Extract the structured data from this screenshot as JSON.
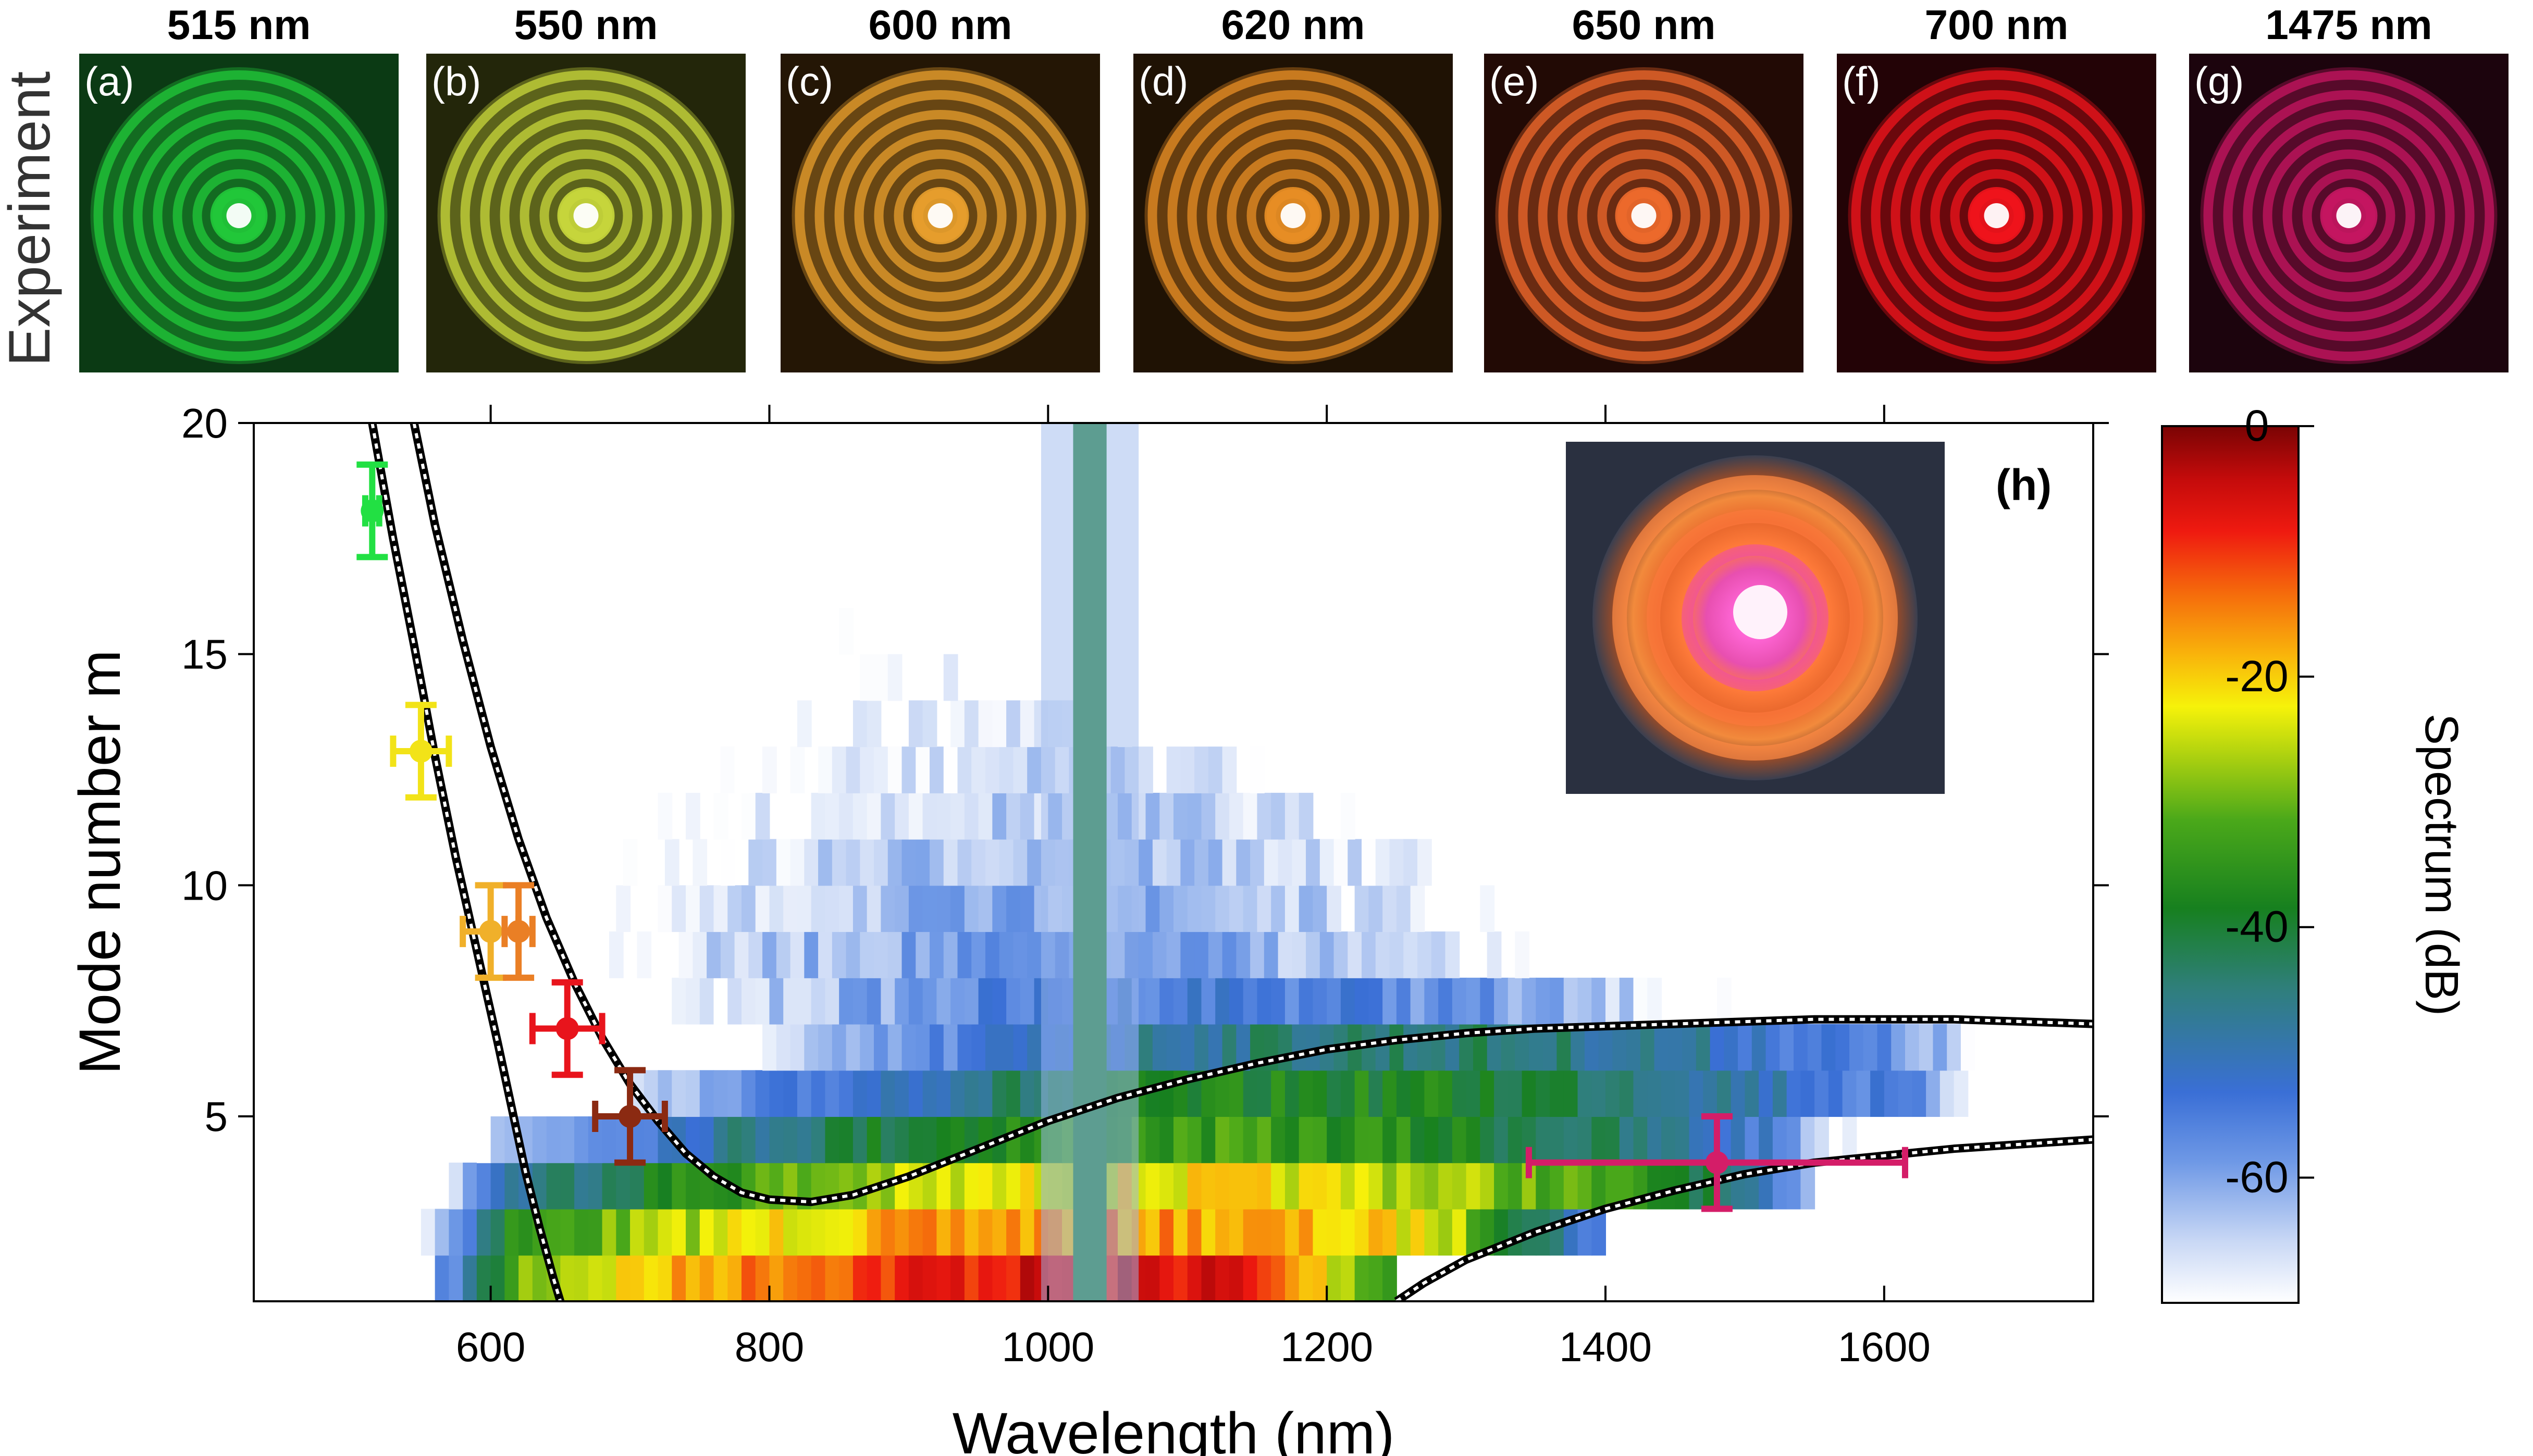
{
  "experiment_row": {
    "row_label": "Experiment",
    "panels": [
      {
        "tag": "(a)",
        "title": "515 nm",
        "wavelength": 515,
        "color": "#22c93a",
        "bg": "#0b3a14"
      },
      {
        "tag": "(b)",
        "title": "550 nm",
        "wavelength": 550,
        "color": "#c9d83c",
        "bg": "#23260a"
      },
      {
        "tag": "(c)",
        "title": "600 nm",
        "wavelength": 600,
        "color": "#e9a02e",
        "bg": "#241605"
      },
      {
        "tag": "(d)",
        "title": "620 nm",
        "wavelength": 620,
        "color": "#ea8f25",
        "bg": "#1f1204"
      },
      {
        "tag": "(e)",
        "title": "650 nm",
        "wavelength": 650,
        "color": "#f06a2c",
        "bg": "#220a05"
      },
      {
        "tag": "(f)",
        "title": "700 nm",
        "wavelength": 700,
        "color": "#f2141c",
        "bg": "#230306"
      },
      {
        "tag": "(g)",
        "title": "1475 nm",
        "wavelength": 1475,
        "color": "#c71662",
        "bg": "#1c040d"
      }
    ]
  },
  "chart_data": {
    "type": "heatmap",
    "panel_tag": "(h)",
    "xlabel": "Wavelength (nm)",
    "ylabel": "Mode number m",
    "xlim": [
      430,
      1750
    ],
    "ylim": [
      1,
      20
    ],
    "xticks": [
      600,
      800,
      1000,
      1200,
      1400,
      1600
    ],
    "yticks": [
      5,
      10,
      15,
      20
    ],
    "colorbar": {
      "label": "Spectrum (dB)",
      "range": [
        -70,
        0
      ],
      "ticks": [
        0,
        -20,
        -40,
        -60
      ],
      "colors": [
        "#ffffff",
        "#c9d8f5",
        "#6f99e6",
        "#3a6fd6",
        "#2f7f7a",
        "#17801f",
        "#4aa81a",
        "#a8cf10",
        "#f6f20a",
        "#f9b30b",
        "#f56a0c",
        "#ef1a10",
        "#c40b0b",
        "#7a0404"
      ]
    },
    "heatmap_bands": [
      {
        "m": 1.5,
        "x_start": 560,
        "x_end": 1250,
        "peak_db": -2,
        "peak_x": 1050
      },
      {
        "m": 2.5,
        "x_start": 550,
        "x_end": 1400,
        "peak_db": -12,
        "peak_x": 1020
      },
      {
        "m": 3.5,
        "x_start": 540,
        "x_end": 1580,
        "peak_db": -18,
        "peak_x": 1080
      },
      {
        "m": 4.5,
        "x_start": 540,
        "x_end": 1640,
        "peak_db": -30,
        "peak_x": 1100
      },
      {
        "m": 5.5,
        "x_start": 550,
        "x_end": 1750,
        "peak_db": -34,
        "peak_x": 1200
      },
      {
        "m": 6.5,
        "x_start": 555,
        "x_end": 1750,
        "peak_db": -40,
        "peak_x": 1250
      },
      {
        "m": 7.5,
        "x_start": 560,
        "x_end": 1750,
        "peak_db": -50,
        "peak_x": 1100
      },
      {
        "m": 8.5,
        "x_start": 565,
        "x_end": 1700,
        "peak_db": -55,
        "peak_x": 1000
      },
      {
        "m": 9.5,
        "x_start": 560,
        "x_end": 1650,
        "peak_db": -57,
        "peak_x": 1000
      },
      {
        "m": 10.5,
        "x_start": 555,
        "x_end": 1400,
        "peak_db": -58,
        "peak_x": 1000
      },
      {
        "m": 11.5,
        "x_start": 550,
        "x_end": 1350,
        "peak_db": -60,
        "peak_x": 1000
      },
      {
        "m": 12.5,
        "x_start": 545,
        "x_end": 1250,
        "peak_db": -62,
        "peak_x": 1000
      },
      {
        "m": 13.5,
        "x_start": 540,
        "x_end": 1150,
        "peak_db": -64,
        "peak_x": 1000
      },
      {
        "m": 14.5,
        "x_start": 535,
        "x_end": 1050,
        "peak_db": -66,
        "peak_x": 1000
      },
      {
        "m": 15.5,
        "x_start": 530,
        "x_end": 1000,
        "peak_db": -67,
        "peak_x": 1000
      },
      {
        "m": 16.5,
        "x_start": 525,
        "x_end": 980,
        "peak_db": -68,
        "peak_x": 1000
      },
      {
        "m": 17.5,
        "x_start": 520,
        "x_end": 960,
        "peak_db": -68,
        "peak_x": 1000
      },
      {
        "m": 18.5,
        "x_start": 515,
        "x_end": 950,
        "peak_db": -69,
        "peak_x": 1000
      }
    ],
    "pump_line": {
      "x": 1030,
      "m_from": 1,
      "m_to": 20,
      "db": -40
    },
    "curves": [
      {
        "name": "left branch",
        "x": [
          515,
          530,
          545,
          560,
          575,
          590,
          605,
          615,
          625,
          635,
          645,
          650
        ],
        "y": [
          20,
          17.5,
          15.2,
          12.8,
          10.6,
          8.6,
          6.6,
          5.2,
          3.8,
          2.6,
          1.5,
          1
        ]
      },
      {
        "name": "upper curve",
        "x": [
          545,
          560,
          580,
          600,
          620,
          640,
          660,
          680,
          700,
          720,
          740,
          760,
          780,
          800,
          830,
          860,
          900,
          950,
          1000,
          1050,
          1100,
          1150,
          1200,
          1250,
          1300,
          1350,
          1400,
          1450,
          1500,
          1550,
          1600,
          1650,
          1700,
          1750
        ],
        "y": [
          20,
          17.8,
          15.3,
          13.0,
          11.0,
          9.3,
          7.9,
          6.7,
          5.7,
          4.9,
          4.2,
          3.7,
          3.35,
          3.2,
          3.15,
          3.3,
          3.7,
          4.3,
          4.9,
          5.4,
          5.8,
          6.15,
          6.45,
          6.65,
          6.8,
          6.9,
          6.95,
          7.0,
          7.05,
          7.1,
          7.1,
          7.1,
          7.05,
          7.0
        ]
      },
      {
        "name": "lower right curve",
        "x": [
          1250,
          1270,
          1300,
          1350,
          1400,
          1450,
          1500,
          1550,
          1600,
          1650,
          1700,
          1750
        ],
        "y": [
          1,
          1.4,
          1.9,
          2.5,
          3.0,
          3.4,
          3.75,
          4.0,
          4.15,
          4.3,
          4.4,
          4.5
        ]
      }
    ],
    "experimental_points": [
      {
        "label": "515 nm",
        "x": 515,
        "y": 18.1,
        "xerr": 5,
        "yerr": 1.0,
        "color": "#22e043"
      },
      {
        "label": "550 nm",
        "x": 550,
        "y": 12.9,
        "xerr": 20,
        "yerr": 1.0,
        "color": "#f2e318"
      },
      {
        "label": "600 nm",
        "x": 600,
        "y": 9.0,
        "xerr": 20,
        "yerr": 1.0,
        "color": "#f0b02a"
      },
      {
        "label": "620 nm",
        "x": 620,
        "y": 9.0,
        "xerr": 10,
        "yerr": 1.0,
        "color": "#ea7f25"
      },
      {
        "label": "650 nm",
        "x": 655,
        "y": 6.9,
        "xerr": 25,
        "yerr": 1.0,
        "color": "#e8141c"
      },
      {
        "label": "700 nm",
        "x": 700,
        "y": 5.0,
        "xerr": 25,
        "yerr": 1.0,
        "color": "#8b2a12"
      },
      {
        "label": "1475 nm",
        "x": 1480,
        "y": 4.0,
        "xerr": 135,
        "yerr": 1.0,
        "color": "#d41d68"
      }
    ],
    "inset": {
      "description_colors": [
        "#e85a2a",
        "#ff7b3a",
        "#e84fb0",
        "#ff9de6"
      ]
    }
  }
}
